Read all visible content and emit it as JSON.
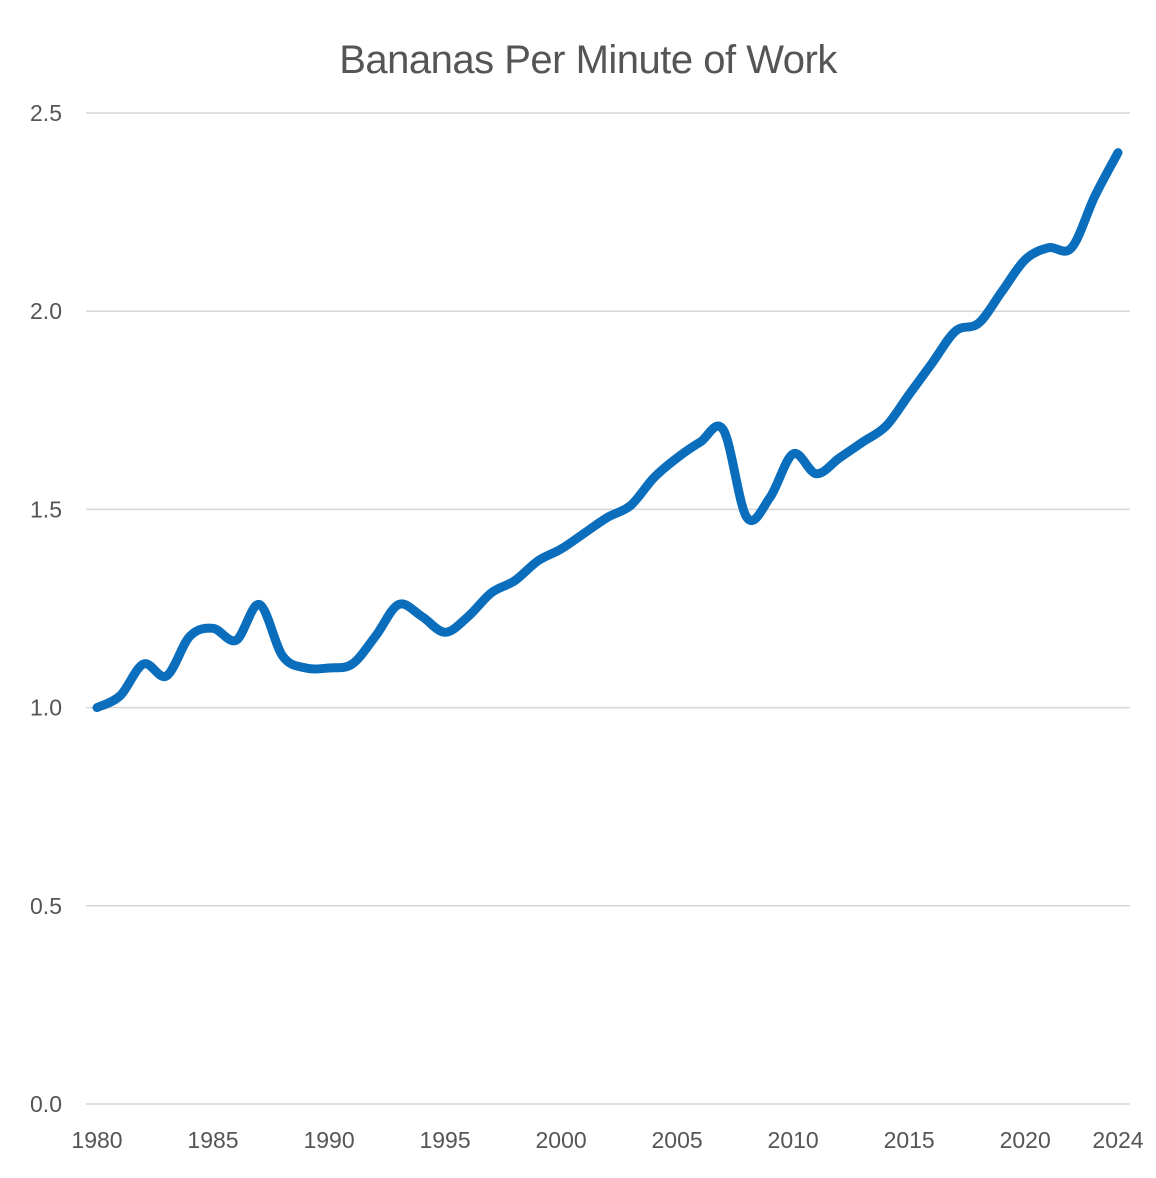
{
  "chart_data": {
    "type": "line",
    "title": "Bananas Per Minute of Work",
    "xlabel": "",
    "ylabel": "",
    "xlim": [
      1980,
      2024
    ],
    "ylim": [
      0,
      2.5
    ],
    "grid": true,
    "legend": "none",
    "x_ticks": [
      1980,
      1985,
      1990,
      1995,
      2000,
      2005,
      2010,
      2015,
      2020,
      2024
    ],
    "x_tick_labels": [
      "1980",
      "1985",
      "1990",
      "1995",
      "2000",
      "2005",
      "2010",
      "2015",
      "2020",
      "2024"
    ],
    "y_ticks": [
      0,
      0.5,
      1.0,
      1.5,
      2.0,
      2.5
    ],
    "y_tick_labels": [
      "0.0",
      "0.5",
      "1.0",
      "1.5",
      "2.0",
      "2.5"
    ],
    "series": [
      {
        "color": "#0a6ebd",
        "x": [
          1980,
          1981,
          1982,
          1983,
          1984,
          1985,
          1986,
          1987,
          1988,
          1989,
          1990,
          1991,
          1992,
          1993,
          1994,
          1995,
          1996,
          1997,
          1998,
          1999,
          2000,
          2001,
          2002,
          2003,
          2004,
          2005,
          2006,
          2007,
          2008,
          2009,
          2010,
          2011,
          2012,
          2013,
          2014,
          2015,
          2016,
          2017,
          2018,
          2019,
          2020,
          2021,
          2022,
          2023,
          2024
        ],
        "values": [
          1.0,
          1.03,
          1.11,
          1.08,
          1.18,
          1.2,
          1.17,
          1.26,
          1.13,
          1.1,
          1.1,
          1.11,
          1.18,
          1.26,
          1.23,
          1.19,
          1.23,
          1.29,
          1.32,
          1.37,
          1.4,
          1.44,
          1.48,
          1.51,
          1.58,
          1.63,
          1.67,
          1.7,
          1.48,
          1.53,
          1.64,
          1.59,
          1.63,
          1.67,
          1.71,
          1.79,
          1.87,
          1.95,
          1.97,
          2.05,
          2.13,
          2.16,
          2.16,
          2.29,
          2.4
        ]
      }
    ]
  }
}
